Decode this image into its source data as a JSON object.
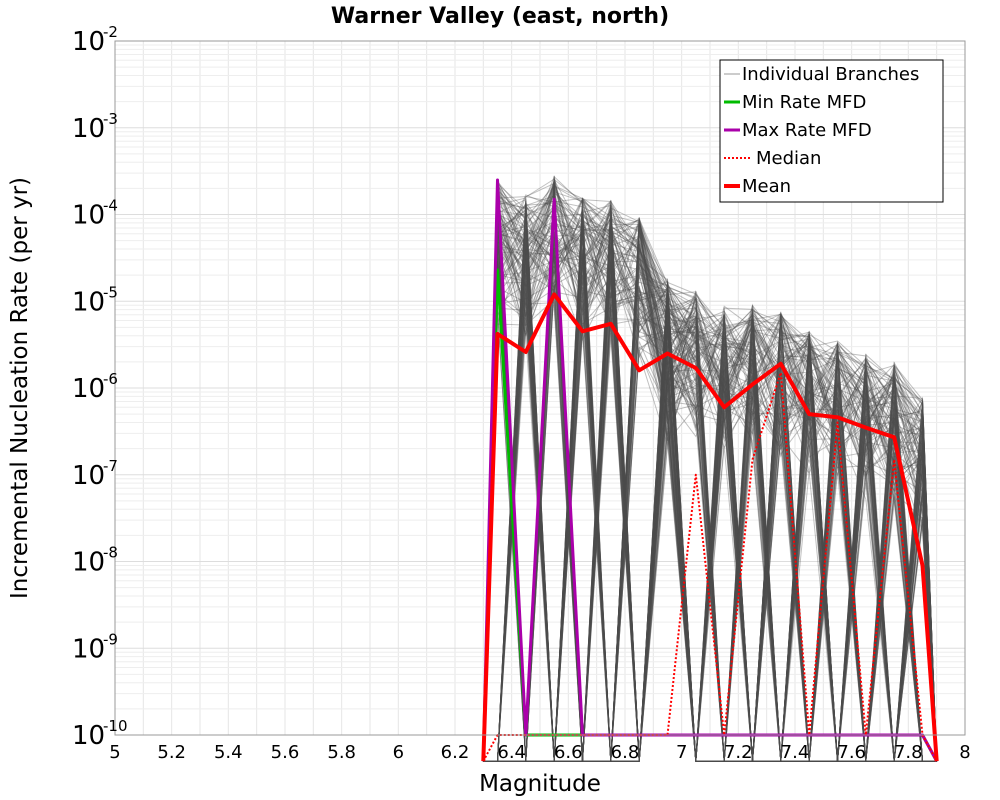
{
  "chart_data": {
    "type": "line",
    "title": "Warner Valley (east, north)",
    "xlabel": "Magnitude",
    "ylabel": "Incremental Nucleation Rate (per yr)",
    "xlim": [
      5,
      8
    ],
    "ylim": [
      1e-10,
      0.01
    ],
    "yscale": "log",
    "grid": true,
    "legend_position": "top-right",
    "x_ticks": [
      "5",
      "5.2",
      "5.4",
      "5.6",
      "5.8",
      "6",
      "6.2",
      "6.4",
      "6.6",
      "6.8",
      "7",
      "7.2",
      "7.4",
      "7.6",
      "7.8",
      "8"
    ],
    "y_ticks": [
      {
        "base": "10",
        "exp": "-2"
      },
      {
        "base": "10",
        "exp": "-3"
      },
      {
        "base": "10",
        "exp": "-4"
      },
      {
        "base": "10",
        "exp": "-5"
      },
      {
        "base": "10",
        "exp": "-6"
      },
      {
        "base": "10",
        "exp": "-7"
      },
      {
        "base": "10",
        "exp": "-8"
      },
      {
        "base": "10",
        "exp": "-9"
      },
      {
        "base": "10",
        "exp": "-10"
      }
    ],
    "x": [
      6.35,
      6.45,
      6.55,
      6.65,
      6.75,
      6.85,
      6.95,
      7.05,
      7.15,
      7.25,
      7.35,
      7.45,
      7.55,
      7.65,
      7.75,
      7.85
    ],
    "series": [
      {
        "name": "Individual Branches",
        "color": "#555555",
        "style": "thin",
        "band_upper": [
          0.00025,
          0.00017,
          0.00028,
          0.00016,
          0.00015,
          9.5e-05,
          1.8e-05,
          1.3e-05,
          9e-06,
          9e-06,
          8e-06,
          4.5e-06,
          3.5e-06,
          2.5e-06,
          2e-06,
          8e-07
        ],
        "band_lower": [
          1e-10,
          1e-10,
          1e-10,
          1e-10,
          1e-10,
          1e-10,
          2e-07,
          1e-10,
          1e-10,
          1e-10,
          1e-10,
          1e-10,
          1e-10,
          1e-10,
          1e-10,
          1e-10
        ]
      },
      {
        "name": "Min Rate MFD",
        "color": "#00bb00",
        "style": "solid",
        "values": [
          2.3e-05,
          1e-10,
          1e-10,
          1e-10,
          1e-10,
          1e-10,
          1e-10,
          1e-10,
          1e-10,
          1e-10,
          1e-10,
          1e-10,
          1e-10,
          1e-10,
          1e-10,
          1e-10
        ]
      },
      {
        "name": "Max Rate MFD",
        "color": "#aa00aa",
        "style": "solid",
        "values": [
          0.00025,
          1e-10,
          0.00015,
          1e-10,
          1e-10,
          1e-10,
          1e-10,
          1e-10,
          1e-10,
          1e-10,
          1e-10,
          1e-10,
          1e-10,
          1e-10,
          1e-10,
          1e-10
        ]
      },
      {
        "name": "Median",
        "color": "#ff0000",
        "style": "dotted",
        "values": [
          1e-10,
          1e-10,
          1e-10,
          1e-10,
          1e-10,
          1e-10,
          1e-10,
          1e-07,
          1e-10,
          1.5e-07,
          1.5e-06,
          1e-10,
          4e-07,
          1e-10,
          1.5e-07,
          1e-10
        ]
      },
      {
        "name": "Mean",
        "color": "#ff0000",
        "style": "thick",
        "values": [
          4.2e-06,
          2.6e-06,
          1.2e-05,
          4.5e-06,
          5.5e-06,
          1.6e-06,
          2.5e-06,
          1.7e-06,
          6e-07,
          1.1e-06,
          1.9e-06,
          5e-07,
          4.6e-07,
          3.5e-07,
          2.7e-07,
          9e-09
        ]
      }
    ]
  }
}
